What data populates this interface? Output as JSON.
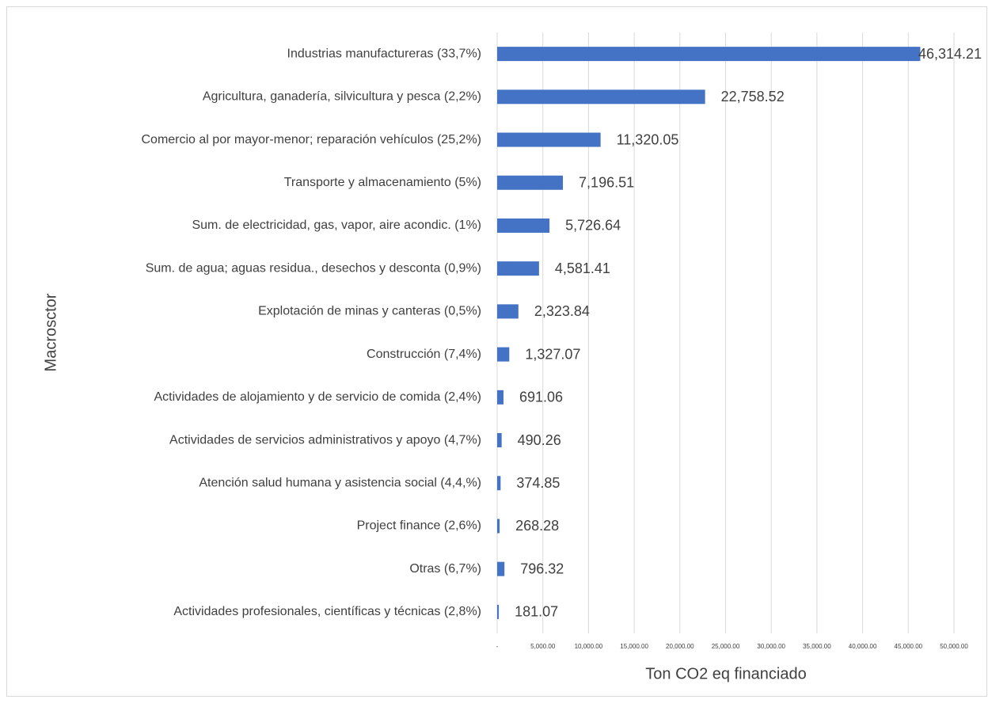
{
  "chart_data": {
    "type": "barh",
    "xlabel": "Ton CO2 eq financiado",
    "ylabel": "Macrosctor",
    "categories": [
      "Industrias manufactureras (33,7%)",
      "Agricultura, ganadería, silvicultura y pesca (2,2%)",
      "Comercio al por mayor-menor; reparación vehículos (25,2%)",
      "Transporte y almacenamiento (5%)",
      "Sum. de electricidad, gas, vapor, aire acondic. (1%)",
      "Sum. de agua; aguas residua., desechos y desconta (0,9%)",
      "Explotación de minas y canteras (0,5%)",
      "Construcción (7,4%)",
      "Actividades de alojamiento y de servicio de comida (2,4%)",
      "Actividades de servicios administrativos y apoyo (4,7%)",
      "Atención salud humana y asistencia social (4,4,%)",
      "Project finance (2,6%)",
      "Otras (6,7%)",
      "Actividades profesionales, científicas y técnicas (2,8%)"
    ],
    "values": [
      46314.21,
      22758.52,
      11320.05,
      7196.51,
      5726.64,
      4581.41,
      2323.84,
      1327.07,
      691.06,
      490.26,
      374.85,
      268.28,
      796.32,
      181.07
    ],
    "value_labels": [
      "46,314.21",
      "22,758.52",
      "11,320.05",
      "7,196.51",
      "5,726.64",
      "4,581.41",
      "2,323.84",
      "1,327.07",
      "691.06",
      "490.26",
      "374.85",
      "268.28",
      "796.32",
      "181.07"
    ],
    "color": "#4472c4",
    "xlim": [
      0,
      50000
    ],
    "xticks": [
      {
        "value": 0,
        "label": "-"
      },
      {
        "value": 5000,
        "label": "5,000.00"
      },
      {
        "value": 10000,
        "label": "10,000.00"
      },
      {
        "value": 15000,
        "label": "15,000.00"
      },
      {
        "value": 20000,
        "label": "20,000.00"
      },
      {
        "value": 25000,
        "label": "25,000.00"
      },
      {
        "value": 30000,
        "label": "30,000.00"
      },
      {
        "value": 35000,
        "label": "35,000.00"
      },
      {
        "value": 40000,
        "label": "40,000.00"
      },
      {
        "value": 45000,
        "label": "45,000.00"
      },
      {
        "value": 50000,
        "label": "50,000.00"
      }
    ],
    "grid": true
  }
}
